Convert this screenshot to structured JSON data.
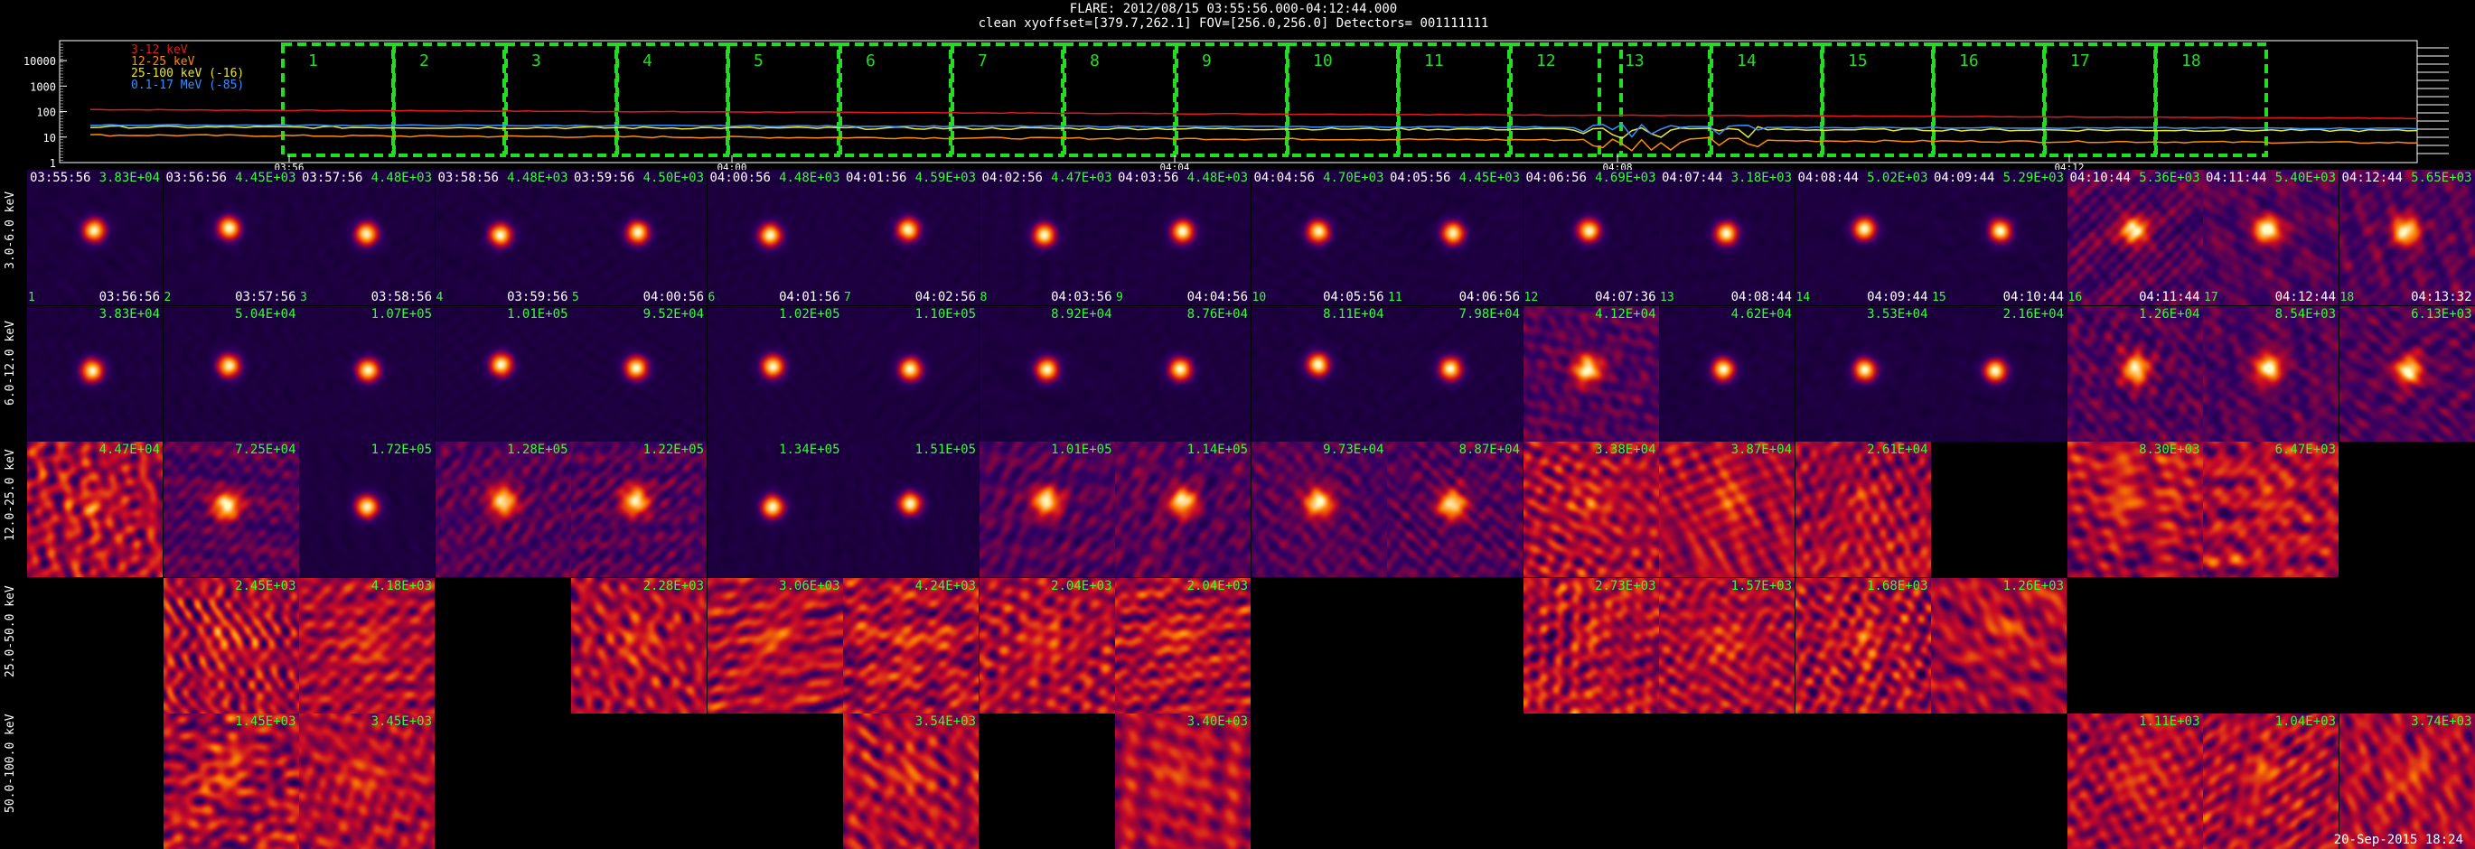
{
  "header": {
    "line1": "FLARE: 2012/08/15 03:55:56.000-04:12:44.000",
    "line2": "clean   xyoffset=[379.7,262.1]  FOV=[256.0,256.0]   Detectors= 001111111"
  },
  "lightcurve": {
    "y_ticks": [
      "10000",
      "1000",
      "100",
      "10",
      "1"
    ],
    "legend": [
      {
        "label": "3-12 keV",
        "color": "#e31a1c"
      },
      {
        "label": "12-25 keV",
        "color": "#ff8c00"
      },
      {
        "label": "25-100 keV (-16)",
        "color": "#e8e830"
      },
      {
        "label": "0.1-17 MeV (-85)",
        "color": "#3a8fff"
      }
    ],
    "x_ticks": [
      "03:56",
      "04:00",
      "04:04",
      "04:08",
      "04:12"
    ],
    "interval_labels": [
      "1",
      "2",
      "3",
      "4",
      "5",
      "6",
      "7",
      "8",
      "9",
      "10",
      "11",
      "12",
      "13",
      "14",
      "15",
      "16",
      "17",
      "18"
    ],
    "interval_color": "#22dd22",
    "series": {
      "3-12 keV": {
        "start": 120,
        "end": 55,
        "noise": 0.03
      },
      "12-25 keV": {
        "start": 12,
        "end": 6,
        "noise": 0.08
      },
      "25-100 keV (-16)": {
        "start": 25,
        "end": 18,
        "noise": 0.1
      },
      "0.1-17 MeV (-85)": {
        "start": 30,
        "end": 22,
        "noise": 0.05
      }
    }
  },
  "rows": [
    {
      "label": "3.0-6.0 keV"
    },
    {
      "label": "6.0-12.0 keV"
    },
    {
      "label": "12.0-25.0 keV"
    },
    {
      "label": "25.0-50.0 keV"
    },
    {
      "label": "50.0-100.0 keV"
    }
  ],
  "start_times": [
    "03:55:56",
    "03:56:56",
    "03:57:56",
    "03:58:56",
    "03:59:56",
    "04:00:56",
    "04:01:56",
    "04:02:56",
    "04:03:56",
    "04:04:56",
    "04:05:56",
    "04:06:56",
    "04:07:44",
    "04:08:44",
    "04:09:44",
    "04:10:44",
    "04:11:44",
    "04:12:44"
  ],
  "end_times": [
    "03:56:56",
    "03:57:56",
    "03:58:56",
    "03:59:56",
    "04:00:56",
    "04:01:56",
    "04:02:56",
    "04:03:56",
    "04:04:56",
    "04:05:56",
    "04:06:56",
    "04:07:36",
    "04:08:44",
    "04:09:44",
    "04:10:44",
    "04:11:44",
    "04:12:44",
    "04:13:32"
  ],
  "tiles": [
    {
      "row": 0,
      "col": 0,
      "max": "3.83E+04",
      "kind": "clean"
    },
    {
      "row": 0,
      "col": 1,
      "max": "4.45E+03",
      "kind": "clean"
    },
    {
      "row": 0,
      "col": 2,
      "max": "4.48E+03",
      "kind": "clean"
    },
    {
      "row": 0,
      "col": 3,
      "max": "4.48E+03",
      "kind": "clean"
    },
    {
      "row": 0,
      "col": 4,
      "max": "4.50E+03",
      "kind": "clean"
    },
    {
      "row": 0,
      "col": 5,
      "max": "4.48E+03",
      "kind": "clean"
    },
    {
      "row": 0,
      "col": 6,
      "max": "4.59E+03",
      "kind": "clean"
    },
    {
      "row": 0,
      "col": 7,
      "max": "4.47E+03",
      "kind": "clean"
    },
    {
      "row": 0,
      "col": 8,
      "max": "4.48E+03",
      "kind": "clean"
    },
    {
      "row": 0,
      "col": 9,
      "max": "4.70E+03",
      "kind": "clean"
    },
    {
      "row": 0,
      "col": 10,
      "max": "4.45E+03",
      "kind": "clean"
    },
    {
      "row": 0,
      "col": 11,
      "max": "4.69E+03",
      "kind": "clean"
    },
    {
      "row": 0,
      "col": 12,
      "max": "3.18E+03",
      "kind": "clean"
    },
    {
      "row": 0,
      "col": 13,
      "max": "5.02E+03",
      "kind": "clean"
    },
    {
      "row": 0,
      "col": 14,
      "max": "5.29E+03",
      "kind": "clean"
    },
    {
      "row": 0,
      "col": 15,
      "max": "5.36E+03",
      "kind": "mid"
    },
    {
      "row": 0,
      "col": 16,
      "max": "5.40E+03",
      "kind": "mid"
    },
    {
      "row": 0,
      "col": 17,
      "max": "5.65E+03",
      "kind": "mid"
    },
    {
      "row": 1,
      "col": 0,
      "max": "3.83E+04",
      "kind": "clean"
    },
    {
      "row": 1,
      "col": 1,
      "max": "5.04E+04",
      "kind": "clean"
    },
    {
      "row": 1,
      "col": 2,
      "max": "1.07E+05",
      "kind": "clean"
    },
    {
      "row": 1,
      "col": 3,
      "max": "1.01E+05",
      "kind": "clean"
    },
    {
      "row": 1,
      "col": 4,
      "max": "9.52E+04",
      "kind": "clean"
    },
    {
      "row": 1,
      "col": 5,
      "max": "1.02E+05",
      "kind": "clean"
    },
    {
      "row": 1,
      "col": 6,
      "max": "1.10E+05",
      "kind": "clean"
    },
    {
      "row": 1,
      "col": 7,
      "max": "8.92E+04",
      "kind": "clean"
    },
    {
      "row": 1,
      "col": 8,
      "max": "8.76E+04",
      "kind": "clean"
    },
    {
      "row": 1,
      "col": 9,
      "max": "8.11E+04",
      "kind": "clean"
    },
    {
      "row": 1,
      "col": 10,
      "max": "7.98E+04",
      "kind": "clean"
    },
    {
      "row": 1,
      "col": 11,
      "max": "4.12E+04",
      "kind": "mid"
    },
    {
      "row": 1,
      "col": 12,
      "max": "4.62E+04",
      "kind": "clean"
    },
    {
      "row": 1,
      "col": 13,
      "max": "3.53E+04",
      "kind": "clean"
    },
    {
      "row": 1,
      "col": 14,
      "max": "2.16E+04",
      "kind": "clean"
    },
    {
      "row": 1,
      "col": 15,
      "max": "1.26E+04",
      "kind": "mid"
    },
    {
      "row": 1,
      "col": 16,
      "max": "8.54E+03",
      "kind": "mid"
    },
    {
      "row": 1,
      "col": 17,
      "max": "6.13E+03",
      "kind": "mid"
    },
    {
      "row": 2,
      "col": 0,
      "max": "4.47E+04",
      "kind": "noise"
    },
    {
      "row": 2,
      "col": 1,
      "max": "7.25E+04",
      "kind": "mid"
    },
    {
      "row": 2,
      "col": 2,
      "max": "1.72E+05",
      "kind": "clean"
    },
    {
      "row": 2,
      "col": 3,
      "max": "1.28E+05",
      "kind": "mid"
    },
    {
      "row": 2,
      "col": 4,
      "max": "1.22E+05",
      "kind": "mid"
    },
    {
      "row": 2,
      "col": 5,
      "max": "1.34E+05",
      "kind": "clean"
    },
    {
      "row": 2,
      "col": 6,
      "max": "1.51E+05",
      "kind": "clean"
    },
    {
      "row": 2,
      "col": 7,
      "max": "1.01E+05",
      "kind": "mid"
    },
    {
      "row": 2,
      "col": 8,
      "max": "1.14E+05",
      "kind": "mid"
    },
    {
      "row": 2,
      "col": 9,
      "max": "9.73E+04",
      "kind": "mid"
    },
    {
      "row": 2,
      "col": 10,
      "max": "8.87E+04",
      "kind": "mid"
    },
    {
      "row": 2,
      "col": 11,
      "max": "3.38E+04",
      "kind": "noise"
    },
    {
      "row": 2,
      "col": 12,
      "max": "3.87E+04",
      "kind": "noise"
    },
    {
      "row": 2,
      "col": 13,
      "max": "2.61E+04",
      "kind": "noise"
    },
    {
      "row": 2,
      "col": 15,
      "max": "8.30E+03",
      "kind": "noise"
    },
    {
      "row": 2,
      "col": 16,
      "max": "6.47E+03",
      "kind": "noise"
    },
    {
      "row": 3,
      "col": 1,
      "max": "2.45E+03",
      "kind": "noise"
    },
    {
      "row": 3,
      "col": 2,
      "max": "4.18E+03",
      "kind": "noise"
    },
    {
      "row": 3,
      "col": 4,
      "max": "2.28E+03",
      "kind": "noise"
    },
    {
      "row": 3,
      "col": 5,
      "max": "3.06E+03",
      "kind": "noise"
    },
    {
      "row": 3,
      "col": 6,
      "max": "4.24E+03",
      "kind": "noise"
    },
    {
      "row": 3,
      "col": 7,
      "max": "2.04E+03",
      "kind": "noise"
    },
    {
      "row": 3,
      "col": 8,
      "max": "2.04E+03",
      "kind": "noise"
    },
    {
      "row": 3,
      "col": 11,
      "max": "2.73E+03",
      "kind": "noise"
    },
    {
      "row": 3,
      "col": 12,
      "max": "1.57E+03",
      "kind": "noise"
    },
    {
      "row": 3,
      "col": 13,
      "max": "1.68E+03",
      "kind": "noise"
    },
    {
      "row": 3,
      "col": 14,
      "max": "1.26E+03",
      "kind": "noise"
    },
    {
      "row": 4,
      "col": 1,
      "max": "1.45E+03",
      "kind": "noise"
    },
    {
      "row": 4,
      "col": 2,
      "max": "3.45E+03",
      "kind": "noise"
    },
    {
      "row": 4,
      "col": 6,
      "max": "3.54E+03",
      "kind": "noise"
    },
    {
      "row": 4,
      "col": 8,
      "max": "3.40E+03",
      "kind": "noise"
    },
    {
      "row": 4,
      "col": 15,
      "max": "1.11E+03",
      "kind": "noise"
    },
    {
      "row": 4,
      "col": 16,
      "max": "1.04E+03",
      "kind": "noise"
    },
    {
      "row": 4,
      "col": 17,
      "max": "3.74E+03",
      "kind": "noise"
    }
  ],
  "footer": "20-Sep-2015 18:24"
}
